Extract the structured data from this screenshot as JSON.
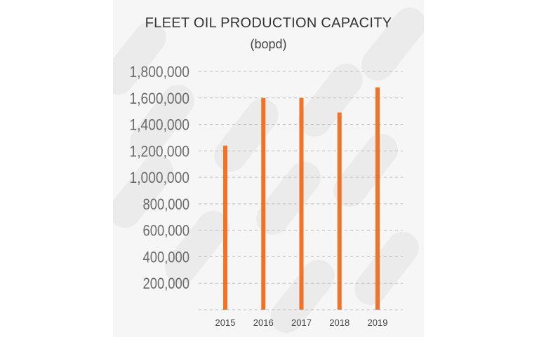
{
  "colors": {
    "bar": "#f07328",
    "grid": "#bdbdbd",
    "panel": "#f6f6f6"
  },
  "chart_data": {
    "type": "bar",
    "title": "FLEET OIL PRODUCTION CAPACITY",
    "subtitle": "(bopd)",
    "categories": [
      "2015",
      "2016",
      "2017",
      "2018",
      "2019"
    ],
    "values": [
      1240000,
      1600000,
      1600000,
      1490000,
      1680000
    ],
    "ylim": [
      0,
      1800000
    ],
    "yticks": [
      "200,000",
      "400,000",
      "600,000",
      "800,000",
      "1,000,000",
      "1,200,000",
      "1,400,000",
      "1,600,000",
      "1,800,000"
    ],
    "ytick_values": [
      200000,
      400000,
      600000,
      800000,
      1000000,
      1200000,
      1400000,
      1600000,
      1800000
    ],
    "grid": true,
    "legend": "none"
  }
}
